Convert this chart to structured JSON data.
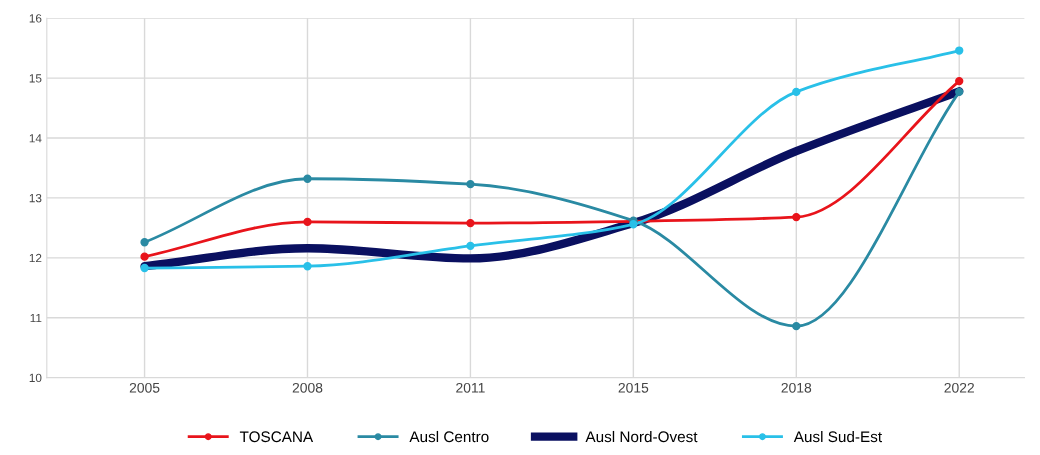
{
  "chart_data": {
    "type": "line",
    "categories": [
      "2005",
      "2008",
      "2011",
      "2015",
      "2018",
      "2022"
    ],
    "series": [
      {
        "name": "TOSCANA",
        "color": "#e8141b",
        "marker": "circle",
        "values": [
          12.02,
          12.6,
          12.58,
          12.61,
          12.68,
          14.95
        ]
      },
      {
        "name": "Ausl Centro",
        "color": "#2a8aa3",
        "marker": "circle",
        "values": [
          12.26,
          13.32,
          13.23,
          12.62,
          10.86,
          14.77
        ]
      },
      {
        "name": "Ausl Nord-Ovest",
        "color": "#0a1060",
        "marker": "none",
        "values": [
          11.86,
          12.16,
          11.99,
          12.58,
          13.78,
          14.78
        ]
      },
      {
        "name": "Ausl Sud-Est",
        "color": "#29c0e8",
        "marker": "circle",
        "values": [
          11.83,
          11.86,
          12.2,
          12.56,
          14.77,
          15.46
        ]
      }
    ],
    "ylim": [
      10,
      16
    ],
    "yticks": [
      10,
      11,
      12,
      13,
      14,
      15,
      16
    ],
    "grid": true,
    "legend": "bottom"
  }
}
